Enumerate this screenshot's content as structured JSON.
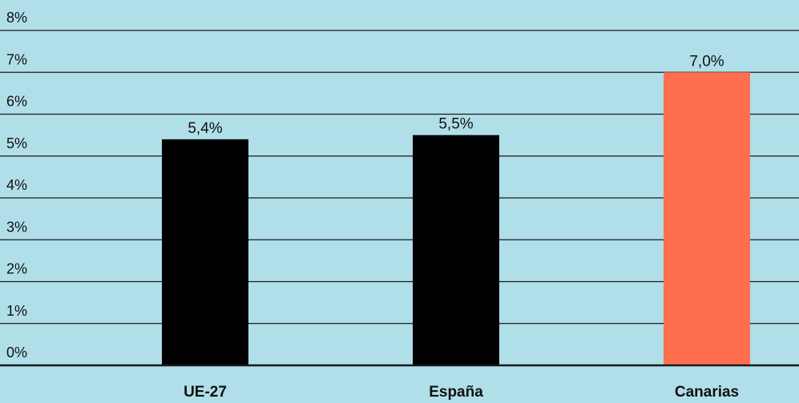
{
  "chart_data": {
    "type": "bar",
    "categories": [
      "UE-27",
      "España",
      "Canarias"
    ],
    "values": [
      5.4,
      5.5,
      7.0
    ],
    "value_labels": [
      "5,4%",
      "5,5%",
      "7,0%"
    ],
    "bar_colors": [
      "#000000",
      "#000000",
      "#ff6f4f"
    ],
    "ylim": [
      0,
      8
    ],
    "yticks": [
      0,
      1,
      2,
      3,
      4,
      5,
      6,
      7,
      8
    ],
    "ytick_labels": [
      "0%",
      "1%",
      "2%",
      "3%",
      "4%",
      "5%",
      "6%",
      "7%",
      "8%"
    ],
    "grid": true,
    "title": "",
    "xlabel": "",
    "ylabel": ""
  },
  "colors": {
    "background": "#b0dfe9",
    "gridline": "#1a1a1a",
    "text": "#111111"
  }
}
